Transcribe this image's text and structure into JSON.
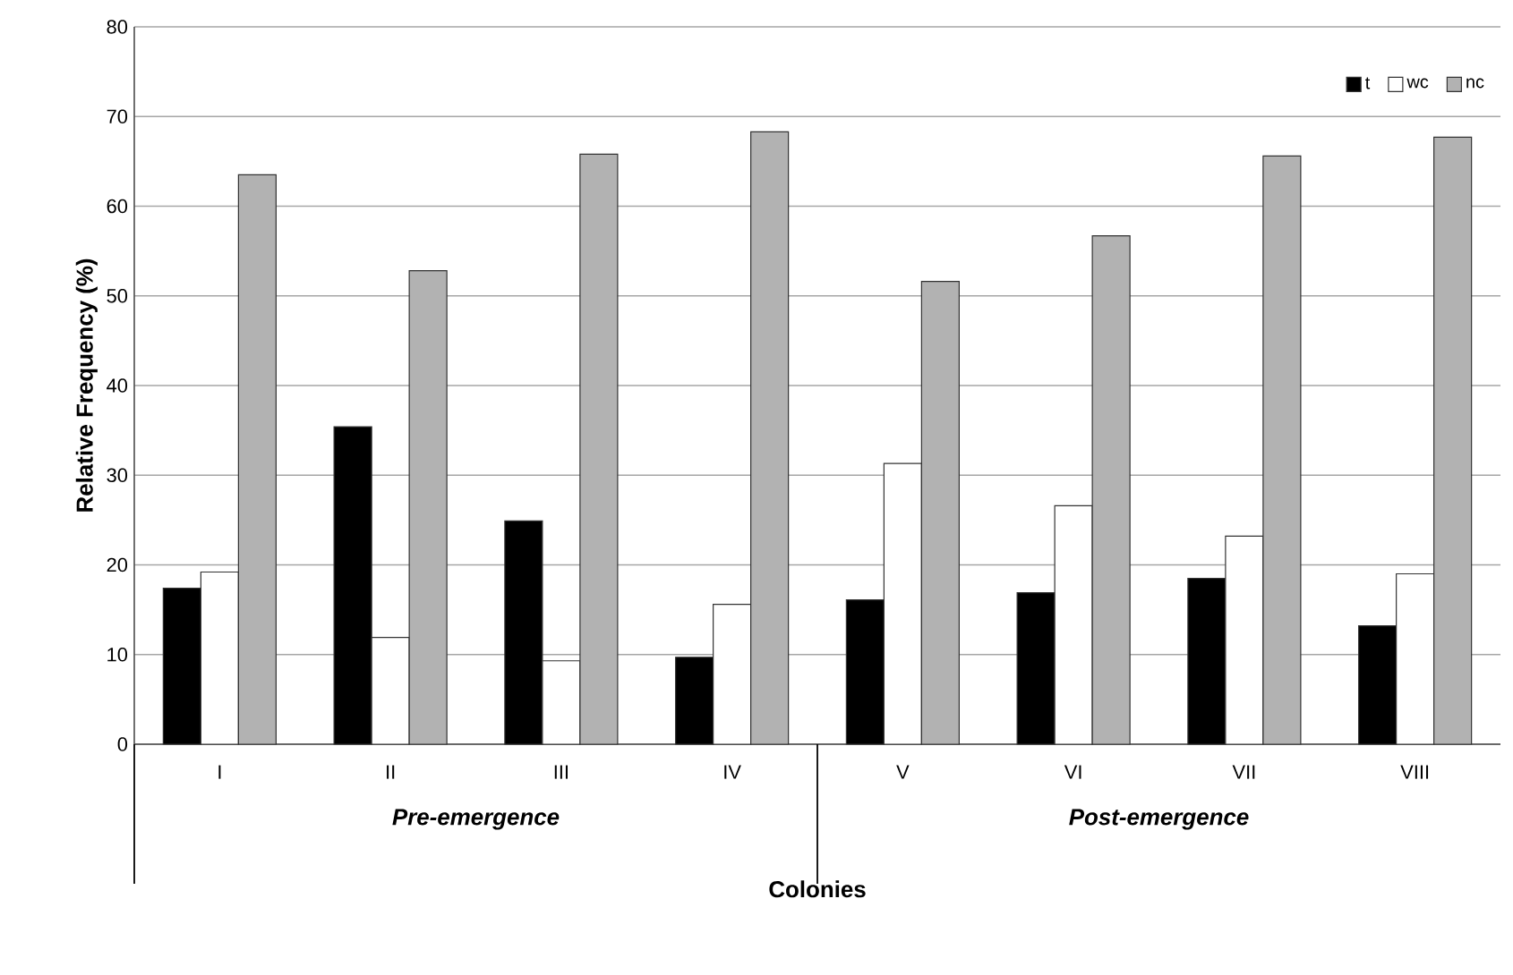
{
  "chart_data": {
    "type": "bar",
    "xlabel": "Colonies",
    "ylabel": "Relative Frequency (%)",
    "categories": [
      "I",
      "II",
      "III",
      "IV",
      "V",
      "VI",
      "VII",
      "VIII"
    ],
    "series": [
      {
        "name": "t",
        "color": "#000000",
        "values": [
          17.4,
          35.4,
          24.9,
          9.7,
          16.1,
          16.9,
          18.5,
          13.2
        ]
      },
      {
        "name": "wc",
        "color": "#ffffff",
        "values": [
          19.2,
          11.9,
          9.3,
          15.6,
          31.3,
          26.6,
          23.2,
          19.0
        ]
      },
      {
        "name": "nc",
        "color": "#b2b2b2",
        "values": [
          63.5,
          52.8,
          65.8,
          68.3,
          51.6,
          56.7,
          65.6,
          67.7
        ]
      }
    ],
    "ylim": [
      0,
      80
    ],
    "yticks": [
      0,
      10,
      20,
      30,
      40,
      50,
      60,
      70,
      80
    ],
    "grid": "y",
    "legend": "top right",
    "annotations": [
      "Pre-emergence",
      "Post-emergence"
    ]
  }
}
